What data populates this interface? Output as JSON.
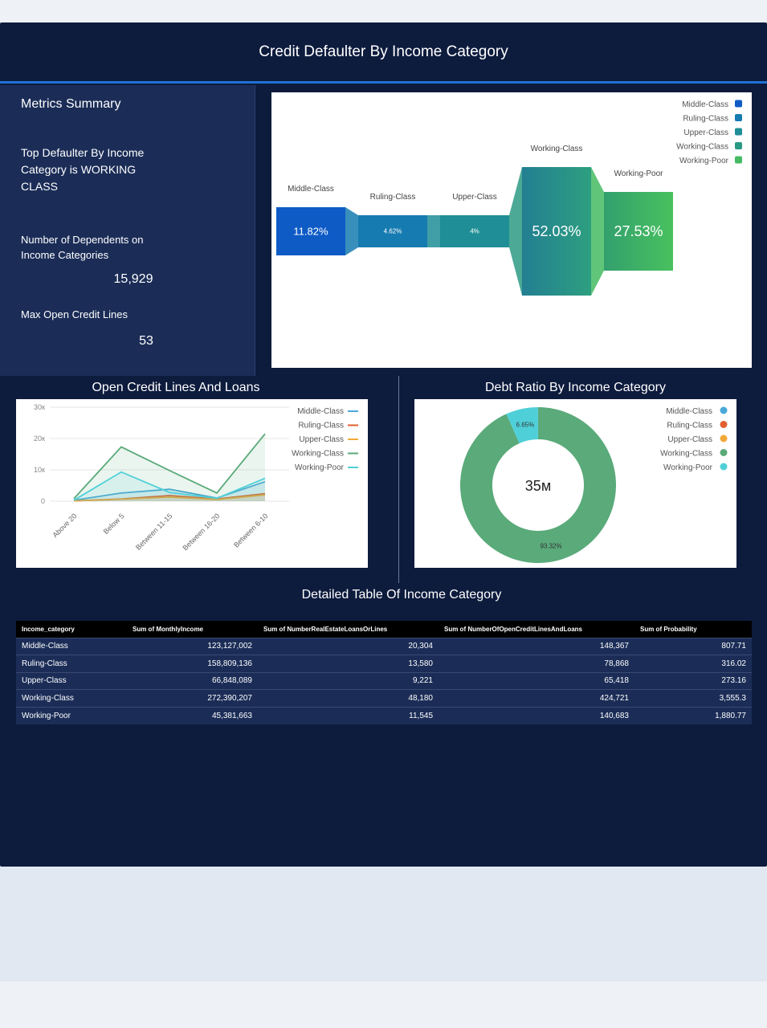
{
  "header": {
    "title": "Credit Defaulter By Income Category"
  },
  "metrics": {
    "title": "Metrics Summary",
    "top_defaulter": "Top Defaulter By Income Category is WORKING CLASS",
    "dependents_label": "Number of Dependents on Income Categories",
    "dependents_value": "15,929",
    "max_open_label": "Max Open Credit Lines",
    "max_open_value": "53"
  },
  "colors": {
    "dashboard_bg": "#0d1b3d",
    "panel_bg": "#1b2d57",
    "accent_line": "#1e73d6"
  },
  "chart_data": [
    {
      "type": "funnel",
      "title": "",
      "categories": [
        "Middle-Class",
        "Ruling-Class",
        "Upper-Class",
        "Working-Class",
        "Working-Poor"
      ],
      "values": [
        11.82,
        4.62,
        4,
        52.03,
        27.53
      ],
      "value_labels": [
        "11.82%",
        "4.62%",
        "4%",
        "52.03%",
        "27.53%"
      ],
      "legend": {
        "position": "top-right",
        "entries": [
          "Middle-Class",
          "Ruling-Class",
          "Upper-Class",
          "Working-Class",
          "Working-Poor"
        ]
      },
      "colors": [
        "#0e5bc6",
        "#167bb0",
        "#1f8e96",
        "#2b9a84",
        "#45bb62"
      ]
    },
    {
      "type": "line",
      "title": "Open Credit Lines And Loans",
      "categories": [
        "Above 20",
        "Below 5",
        "Between 11-15",
        "Between 16-20",
        "Between 6-10"
      ],
      "ylim": [
        0,
        30000
      ],
      "y_ticks": [
        "0",
        "10к",
        "20к",
        "30к"
      ],
      "grid": true,
      "legend": {
        "position": "top-right"
      },
      "series": [
        {
          "name": "Middle-Class",
          "color": "#4aa8d8",
          "values": [
            300,
            2600,
            3800,
            1000,
            6200
          ]
        },
        {
          "name": "Ruling-Class",
          "color": "#e1602e",
          "values": [
            100,
            700,
            1800,
            700,
            2400
          ]
        },
        {
          "name": "Upper-Class",
          "color": "#f2a93a",
          "values": [
            100,
            600,
            1300,
            500,
            2000
          ]
        },
        {
          "name": "Working-Class",
          "color": "#5aaa7a",
          "values": [
            800,
            17300,
            9800,
            2600,
            21500
          ]
        },
        {
          "name": "Working-Poor",
          "color": "#4fd0d8",
          "values": [
            300,
            9300,
            2800,
            900,
            7300
          ]
        }
      ]
    },
    {
      "type": "pie",
      "title": "Debt Ratio By Income Category",
      "center_label": "35м",
      "legend": {
        "position": "top-right",
        "entries": [
          "Middle-Class",
          "Ruling-Class",
          "Upper-Class",
          "Working-Class",
          "Working-Poor"
        ]
      },
      "legend_colors": [
        "#4aa8d8",
        "#e1602e",
        "#f2a93a",
        "#5aaa7a",
        "#4fd0d8"
      ],
      "slices": [
        {
          "name": "Working-Class",
          "value": 93.32,
          "label": "93.32%",
          "color": "#5aaa7a"
        },
        {
          "name": "Working-Poor",
          "value": 6.65,
          "label": "6.65%",
          "color": "#4fd0d8"
        },
        {
          "name": "Middle-Class",
          "value": 0.03,
          "label": "",
          "color": "#4aa8d8"
        }
      ]
    },
    {
      "type": "table",
      "title": "Detailed Table Of Income Category",
      "columns": [
        "Income_category",
        "Sum of MonthlyIncome",
        "Sum of NumberRealEstateLoansOrLines",
        "Sum of NumberOfOpenCreditLinesAndLoans",
        "Sum of Probability"
      ],
      "rows": [
        [
          "Middle-Class",
          "123,127,002",
          "20,304",
          "148,367",
          "807.71"
        ],
        [
          "Ruling-Class",
          "158,809,136",
          "13,580",
          "78,868",
          "316.02"
        ],
        [
          "Upper-Class",
          "66,848,089",
          "9,221",
          "65,418",
          "273.16"
        ],
        [
          "Working-Class",
          "272,390,207",
          "48,180",
          "424,721",
          "3,555.3"
        ],
        [
          "Working-Poor",
          "45,381,663",
          "11,545",
          "140,683",
          "1,880.77"
        ]
      ]
    }
  ]
}
